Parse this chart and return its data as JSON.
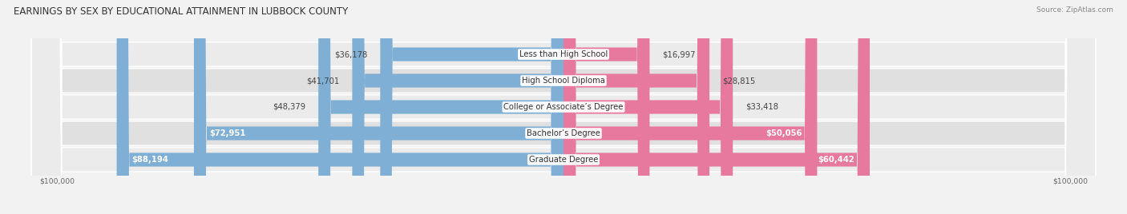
{
  "title": "EARNINGS BY SEX BY EDUCATIONAL ATTAINMENT IN LUBBOCK COUNTY",
  "source": "Source: ZipAtlas.com",
  "categories": [
    "Less than High School",
    "High School Diploma",
    "College or Associate’s Degree",
    "Bachelor’s Degree",
    "Graduate Degree"
  ],
  "male_values": [
    36178,
    41701,
    48379,
    72951,
    88194
  ],
  "female_values": [
    16997,
    28815,
    33418,
    50056,
    60442
  ],
  "male_color": "#7fafd4",
  "female_color": "#e8799e",
  "max_val": 100000,
  "bg_color": "#f2f2f2",
  "row_bg_even": "#ebebeb",
  "row_bg_odd": "#e0e0e0",
  "title_fontsize": 8.5,
  "source_fontsize": 6.5,
  "label_fontsize": 7.2,
  "value_fontsize": 7.2,
  "bar_height": 0.52,
  "inside_threshold_male": 55000,
  "inside_threshold_female": 42000
}
